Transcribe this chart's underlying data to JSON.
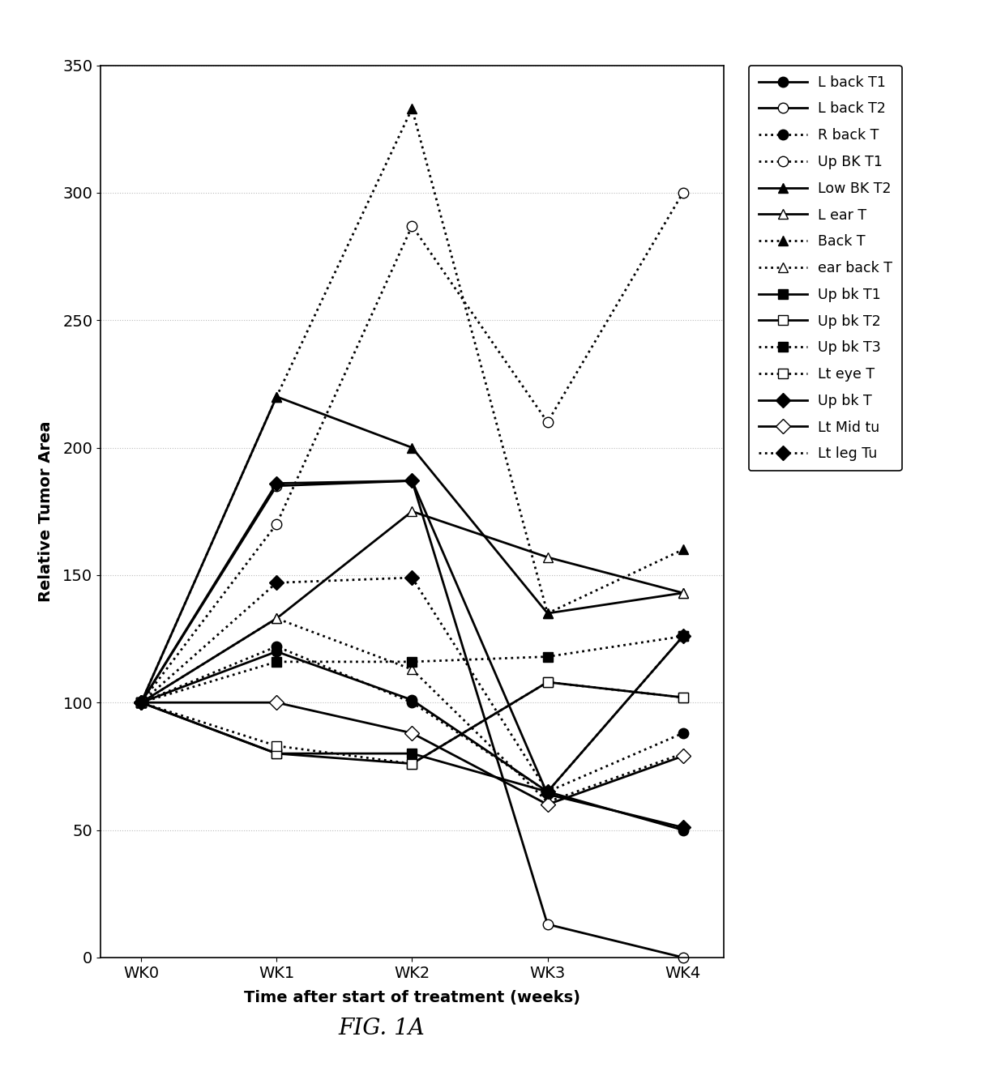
{
  "x_labels": [
    "WK0",
    "WK1",
    "WK2",
    "WK3",
    "WK4"
  ],
  "x_values": [
    0,
    1,
    2,
    3,
    4
  ],
  "series": [
    {
      "label": "L back T1",
      "values": [
        100,
        120,
        101,
        65,
        50
      ],
      "linestyle": "solid",
      "marker": "o",
      "markerfacecolor": "#000000",
      "linewidth": 2.0
    },
    {
      "label": "L back T2",
      "values": [
        100,
        185,
        187,
        13,
        0
      ],
      "linestyle": "solid",
      "marker": "o",
      "markerfacecolor": "#ffffff",
      "linewidth": 2.0
    },
    {
      "label": "R back T",
      "values": [
        100,
        122,
        100,
        65,
        88
      ],
      "linestyle": "dotted",
      "marker": "o",
      "markerfacecolor": "#000000",
      "linewidth": 2.0
    },
    {
      "label": "Up BK T1",
      "values": [
        100,
        170,
        287,
        210,
        300
      ],
      "linestyle": "dotted",
      "marker": "o",
      "markerfacecolor": "#ffffff",
      "linewidth": 2.0
    },
    {
      "label": "Low BK T2",
      "values": [
        100,
        220,
        200,
        135,
        143
      ],
      "linestyle": "solid",
      "marker": "^",
      "markerfacecolor": "#000000",
      "linewidth": 2.0
    },
    {
      "label": "L ear T",
      "values": [
        100,
        133,
        175,
        157,
        143
      ],
      "linestyle": "solid",
      "marker": "^",
      "markerfacecolor": "#ffffff",
      "linewidth": 2.0
    },
    {
      "label": "Back T",
      "values": [
        100,
        220,
        333,
        135,
        160
      ],
      "linestyle": "dotted",
      "marker": "^",
      "markerfacecolor": "#000000",
      "linewidth": 2.0
    },
    {
      "label": "ear back T",
      "values": [
        100,
        133,
        113,
        61,
        80
      ],
      "linestyle": "dotted",
      "marker": "^",
      "markerfacecolor": "#ffffff",
      "linewidth": 2.0
    },
    {
      "label": "Up bk T1",
      "values": [
        100,
        80,
        80,
        65,
        126
      ],
      "linestyle": "solid",
      "marker": "s",
      "markerfacecolor": "#000000",
      "linewidth": 2.0
    },
    {
      "label": "Up bk T2",
      "values": [
        100,
        80,
        76,
        108,
        102
      ],
      "linestyle": "solid",
      "marker": "s",
      "markerfacecolor": "#ffffff",
      "linewidth": 2.0
    },
    {
      "label": "Up bk T3",
      "values": [
        100,
        116,
        116,
        118,
        126
      ],
      "linestyle": "dotted",
      "marker": "s",
      "markerfacecolor": "#000000",
      "linewidth": 2.0
    },
    {
      "label": "Lt eye T",
      "values": [
        100,
        83,
        76,
        108,
        102
      ],
      "linestyle": "dotted",
      "marker": "s",
      "markerfacecolor": "#ffffff",
      "linewidth": 2.0
    },
    {
      "label": "Up bk T",
      "values": [
        100,
        186,
        187,
        64,
        51
      ],
      "linestyle": "solid",
      "marker": "D",
      "markerfacecolor": "#000000",
      "linewidth": 2.0
    },
    {
      "label": "Lt Mid tu",
      "values": [
        100,
        100,
        88,
        60,
        79
      ],
      "linestyle": "solid",
      "marker": "D",
      "markerfacecolor": "#ffffff",
      "linewidth": 2.0
    },
    {
      "label": "Lt leg Tu",
      "values": [
        100,
        147,
        149,
        65,
        126
      ],
      "linestyle": "dotted",
      "marker": "D",
      "markerfacecolor": "#000000",
      "linewidth": 2.0
    }
  ],
  "xlabel": "Time after start of treatment (weeks)",
  "ylabel": "Relative Tumor Area",
  "ylim": [
    0,
    350
  ],
  "yticks": [
    0,
    50,
    100,
    150,
    200,
    250,
    300,
    350
  ],
  "title": "FIG. 1A",
  "background_color": "#ffffff",
  "grid_color": "#bbbbbb",
  "figsize": [
    12.4,
    13.43
  ],
  "dpi": 100
}
